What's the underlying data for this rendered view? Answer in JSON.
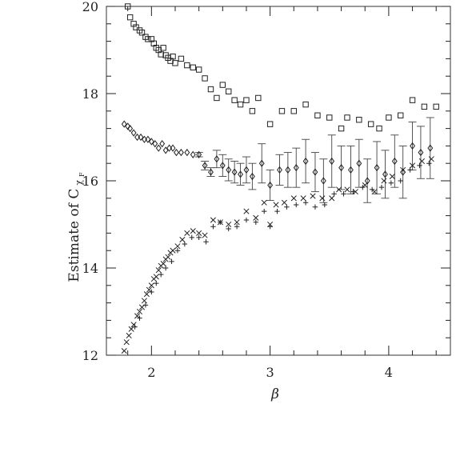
{
  "chart_data": {
    "type": "scatter",
    "ylabel": "Estimate of C",
    "ylabel_sub": "χ",
    "ylabel_subsub": "F",
    "xlabel": "β",
    "xlim": [
      1.62,
      4.52
    ],
    "ylim": [
      12,
      20
    ],
    "x_ticks": [
      2,
      3,
      4
    ],
    "y_ticks": [
      12,
      14,
      16,
      18,
      20
    ],
    "x_tick_labels": [
      "2",
      "3",
      "4"
    ],
    "y_tick_labels": [
      "12",
      "14",
      "16",
      "18",
      "20"
    ],
    "grid": false,
    "series": [
      {
        "marker": "square",
        "points": [
          [
            1.8,
            20.0
          ],
          [
            1.82,
            19.75
          ],
          [
            1.85,
            19.6
          ],
          [
            1.87,
            19.52
          ],
          [
            1.9,
            19.45
          ],
          [
            1.92,
            19.4
          ],
          [
            1.95,
            19.3
          ],
          [
            1.97,
            19.25
          ],
          [
            2.0,
            19.25
          ],
          [
            2.02,
            19.15
          ],
          [
            2.04,
            19.05
          ],
          [
            2.06,
            19.0
          ],
          [
            2.08,
            18.9
          ],
          [
            2.1,
            19.05
          ],
          [
            2.12,
            18.88
          ],
          [
            2.14,
            18.82
          ],
          [
            2.16,
            18.75
          ],
          [
            2.18,
            18.85
          ],
          [
            2.2,
            18.7
          ],
          [
            2.25,
            18.8
          ],
          [
            2.3,
            18.65
          ],
          [
            2.35,
            18.6
          ],
          [
            2.4,
            18.55
          ],
          [
            2.45,
            18.35
          ],
          [
            2.5,
            18.1
          ],
          [
            2.55,
            17.9
          ],
          [
            2.6,
            18.2
          ],
          [
            2.65,
            18.05
          ],
          [
            2.7,
            17.85
          ],
          [
            2.75,
            17.75
          ],
          [
            2.8,
            17.85
          ],
          [
            2.85,
            17.6
          ],
          [
            2.9,
            17.9
          ],
          [
            3.0,
            17.3
          ],
          [
            3.1,
            17.6
          ],
          [
            3.2,
            17.6
          ],
          [
            3.3,
            17.75
          ],
          [
            3.4,
            17.5
          ],
          [
            3.5,
            17.45
          ],
          [
            3.6,
            17.2
          ],
          [
            3.65,
            17.45
          ],
          [
            3.75,
            17.4
          ],
          [
            3.85,
            17.3
          ],
          [
            3.92,
            17.2
          ],
          [
            4.0,
            17.45
          ],
          [
            4.1,
            17.5
          ],
          [
            4.2,
            17.85
          ],
          [
            4.3,
            17.7
          ],
          [
            4.4,
            17.7
          ]
        ]
      },
      {
        "marker": "diamond",
        "error_bars": true,
        "points": [
          [
            1.77,
            17.3,
            0.0
          ],
          [
            1.8,
            17.25,
            0.0
          ],
          [
            1.82,
            17.2,
            0.0
          ],
          [
            1.85,
            17.1,
            0.0
          ],
          [
            1.88,
            17.0,
            0.0
          ],
          [
            1.91,
            17.0,
            0.0
          ],
          [
            1.94,
            16.95,
            0.0
          ],
          [
            1.97,
            16.95,
            0.0
          ],
          [
            2.0,
            16.9,
            0.0
          ],
          [
            2.03,
            16.85,
            0.0
          ],
          [
            2.06,
            16.75,
            0.0
          ],
          [
            2.09,
            16.85,
            0.0
          ],
          [
            2.12,
            16.7,
            0.0
          ],
          [
            2.15,
            16.75,
            0.0
          ],
          [
            2.18,
            16.75,
            0.0
          ],
          [
            2.21,
            16.65,
            0.0
          ],
          [
            2.25,
            16.65,
            0.0
          ],
          [
            2.3,
            16.65,
            0.0
          ],
          [
            2.35,
            16.6,
            0.0
          ],
          [
            2.4,
            16.6,
            0.05
          ],
          [
            2.45,
            16.35,
            0.1
          ],
          [
            2.5,
            16.2,
            0.1
          ],
          [
            2.55,
            16.5,
            0.2
          ],
          [
            2.6,
            16.35,
            0.25
          ],
          [
            2.65,
            16.25,
            0.25
          ],
          [
            2.7,
            16.2,
            0.25
          ],
          [
            2.75,
            16.15,
            0.25
          ],
          [
            2.8,
            16.25,
            0.3
          ],
          [
            2.85,
            16.1,
            0.3
          ],
          [
            2.93,
            16.4,
            0.45
          ],
          [
            3.0,
            15.9,
            0.35
          ],
          [
            3.08,
            16.25,
            0.35
          ],
          [
            3.15,
            16.25,
            0.4
          ],
          [
            3.22,
            16.3,
            0.45
          ],
          [
            3.3,
            16.45,
            0.5
          ],
          [
            3.38,
            16.2,
            0.45
          ],
          [
            3.45,
            16.0,
            0.5
          ],
          [
            3.52,
            16.45,
            0.6
          ],
          [
            3.6,
            16.3,
            0.5
          ],
          [
            3.68,
            16.25,
            0.55
          ],
          [
            3.75,
            16.4,
            0.55
          ],
          [
            3.82,
            16.0,
            0.5
          ],
          [
            3.9,
            16.3,
            0.6
          ],
          [
            3.97,
            16.15,
            0.55
          ],
          [
            4.05,
            16.45,
            0.6
          ],
          [
            4.12,
            16.2,
            0.6
          ],
          [
            4.2,
            16.8,
            0.55
          ],
          [
            4.27,
            16.65,
            0.6
          ],
          [
            4.35,
            16.75,
            0.7
          ]
        ]
      },
      {
        "marker": "cross",
        "points": [
          [
            1.77,
            12.1
          ],
          [
            1.79,
            12.3
          ],
          [
            1.81,
            12.45
          ],
          [
            1.83,
            12.6
          ],
          [
            1.85,
            12.7
          ],
          [
            1.88,
            12.9
          ],
          [
            1.9,
            13.0
          ],
          [
            1.92,
            13.1
          ],
          [
            1.94,
            13.25
          ],
          [
            1.96,
            13.4
          ],
          [
            1.98,
            13.5
          ],
          [
            2.0,
            13.6
          ],
          [
            2.02,
            13.75
          ],
          [
            2.04,
            13.8
          ],
          [
            2.06,
            13.95
          ],
          [
            2.08,
            14.05
          ],
          [
            2.1,
            14.1
          ],
          [
            2.12,
            14.2
          ],
          [
            2.14,
            14.25
          ],
          [
            2.16,
            14.35
          ],
          [
            2.18,
            14.4
          ],
          [
            2.22,
            14.5
          ],
          [
            2.26,
            14.65
          ],
          [
            2.3,
            14.8
          ],
          [
            2.35,
            14.85
          ],
          [
            2.4,
            14.8
          ],
          [
            2.45,
            14.75
          ],
          [
            2.52,
            15.1
          ],
          [
            2.58,
            15.05
          ],
          [
            2.65,
            15.0
          ],
          [
            2.72,
            15.05
          ],
          [
            2.8,
            15.3
          ],
          [
            2.88,
            15.15
          ],
          [
            2.95,
            15.5
          ],
          [
            3.0,
            15.0
          ],
          [
            3.05,
            15.45
          ],
          [
            3.12,
            15.5
          ],
          [
            3.2,
            15.6
          ],
          [
            3.28,
            15.6
          ],
          [
            3.36,
            15.65
          ],
          [
            3.44,
            15.6
          ],
          [
            3.52,
            15.6
          ],
          [
            3.58,
            15.8
          ],
          [
            3.65,
            15.8
          ],
          [
            3.72,
            15.75
          ],
          [
            3.8,
            15.9
          ],
          [
            3.88,
            15.75
          ],
          [
            3.96,
            16.0
          ],
          [
            4.03,
            16.1
          ],
          [
            4.12,
            16.25
          ],
          [
            4.2,
            16.35
          ],
          [
            4.28,
            16.45
          ],
          [
            4.36,
            16.5
          ]
        ]
      },
      {
        "marker": "plus",
        "points": [
          [
            1.86,
            12.65
          ],
          [
            1.9,
            12.85
          ],
          [
            1.95,
            13.15
          ],
          [
            2.0,
            13.45
          ],
          [
            2.04,
            13.65
          ],
          [
            2.08,
            13.85
          ],
          [
            2.12,
            14.0
          ],
          [
            2.17,
            14.15
          ],
          [
            2.22,
            14.4
          ],
          [
            2.28,
            14.55
          ],
          [
            2.34,
            14.7
          ],
          [
            2.4,
            14.7
          ],
          [
            2.46,
            14.6
          ],
          [
            2.52,
            14.95
          ],
          [
            2.58,
            15.05
          ],
          [
            2.65,
            14.9
          ],
          [
            2.72,
            14.95
          ],
          [
            2.8,
            15.1
          ],
          [
            2.88,
            15.05
          ],
          [
            2.95,
            15.3
          ],
          [
            3.0,
            14.95
          ],
          [
            3.06,
            15.3
          ],
          [
            3.14,
            15.4
          ],
          [
            3.22,
            15.45
          ],
          [
            3.3,
            15.5
          ],
          [
            3.38,
            15.4
          ],
          [
            3.46,
            15.45
          ],
          [
            3.54,
            15.7
          ],
          [
            3.62,
            15.7
          ],
          [
            3.7,
            15.75
          ],
          [
            3.78,
            15.85
          ],
          [
            3.86,
            15.8
          ],
          [
            3.94,
            15.85
          ],
          [
            4.02,
            15.95
          ],
          [
            4.1,
            16.0
          ],
          [
            4.18,
            16.25
          ],
          [
            4.26,
            16.35
          ],
          [
            4.34,
            16.4
          ]
        ]
      }
    ]
  }
}
